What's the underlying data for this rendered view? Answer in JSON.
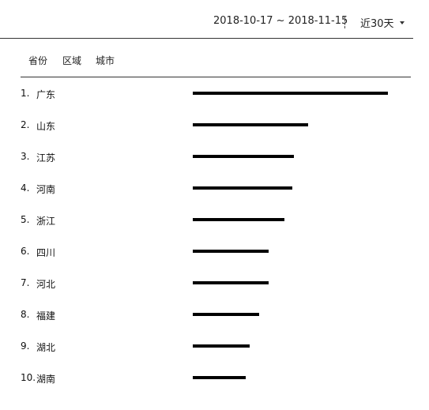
{
  "header": {
    "date_range": "2018-10-17 ~ 2018-11-15",
    "period_label": "近30天"
  },
  "tabs": [
    {
      "label": "省份",
      "active": true
    },
    {
      "label": "区域",
      "active": false
    },
    {
      "label": "城市",
      "active": false
    }
  ],
  "ranking": {
    "max_value": 100,
    "items": [
      {
        "rank": "1.",
        "name": "广东",
        "value": 100
      },
      {
        "rank": "2.",
        "name": "山东",
        "value": 59
      },
      {
        "rank": "3.",
        "name": "江苏",
        "value": 52
      },
      {
        "rank": "4.",
        "name": "河南",
        "value": 51
      },
      {
        "rank": "5.",
        "name": "浙江",
        "value": 47
      },
      {
        "rank": "6.",
        "name": "四川",
        "value": 39
      },
      {
        "rank": "7.",
        "name": "河北",
        "value": 39
      },
      {
        "rank": "8.",
        "name": "福建",
        "value": 34
      },
      {
        "rank": "9.",
        "name": "湖北",
        "value": 29
      },
      {
        "rank": "10.",
        "name": "湖南",
        "value": 27
      }
    ]
  },
  "colors": {
    "bar": "#000000",
    "text": "#111111"
  }
}
